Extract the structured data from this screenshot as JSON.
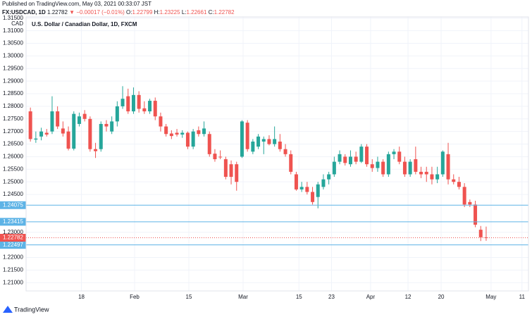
{
  "header": {
    "published": "Published on TradingView.com, May 03, 2021 00:33:07 JST",
    "symbol": "FX:USDCAD, 1D",
    "last": "1.22782",
    "change": "▼ −0.00017 (−0.01%)",
    "o_label": "O:",
    "o": "1.22799",
    "h_label": "H:",
    "h": "1.23225",
    "l_label": "L:",
    "l": "1.22661",
    "c_label": "C:",
    "c": "1.22782"
  },
  "footer": {
    "brand": "TradingView"
  },
  "chart_data": {
    "type": "candlestick",
    "title": "U.S. Dollar / Canadian Dollar, 1D, FXCM",
    "y_unit": "CAD",
    "up_color": "#26a69a",
    "down_color": "#ef5350",
    "grid": true,
    "x": [
      0,
      1,
      2,
      3,
      4,
      5,
      6,
      7,
      8,
      9,
      10,
      11,
      12,
      13,
      14,
      15,
      16,
      17,
      18,
      19,
      20,
      21,
      22,
      23,
      24,
      25,
      26,
      27,
      28,
      29,
      30,
      31,
      32,
      33,
      34,
      35,
      36,
      37,
      38,
      39,
      40,
      41,
      42,
      43,
      44,
      45,
      46,
      47,
      48,
      49,
      50,
      51,
      52,
      53,
      54,
      55,
      56,
      57,
      58,
      59,
      60,
      61,
      62,
      63,
      64,
      65,
      66,
      67,
      68,
      69,
      70,
      71,
      72,
      73,
      74,
      75,
      76,
      77,
      78,
      79,
      80,
      81,
      82,
      83,
      84
    ],
    "open": [
      1.278,
      1.2668,
      1.268,
      1.2695,
      1.27,
      1.278,
      1.2712,
      1.27,
      1.2632,
      1.273,
      1.277,
      1.275,
      1.263,
      1.263,
      1.273,
      1.27,
      1.274,
      1.28,
      1.284,
      1.278,
      1.2845,
      1.2792,
      1.278,
      1.2822,
      1.276,
      1.272,
      1.2692,
      1.2695,
      1.2688,
      1.2695,
      1.264,
      1.2705,
      1.269,
      1.269,
      1.2612,
      1.26,
      1.259,
      1.257,
      1.257,
      1.26,
      1.2735,
      1.262,
      1.264,
      1.266,
      1.267,
      1.265,
      1.266,
      1.263,
      1.261,
      1.253,
      1.247,
      1.248,
      1.246,
      1.244,
      1.248,
      1.251,
      1.253,
      1.258,
      1.26,
      1.257,
      1.26,
      1.258,
      1.264,
      1.257,
      1.2555,
      1.258,
      1.253,
      1.261,
      1.262,
      1.258,
      1.253,
      1.259,
      1.254,
      1.254,
      1.253,
      1.251,
      1.253,
      1.261,
      1.251,
      1.25,
      1.248,
      1.242,
      1.241,
      1.231,
      1.22799
    ],
    "high": [
      1.2795,
      1.27,
      1.2715,
      1.271,
      1.284,
      1.28,
      1.274,
      1.272,
      1.278,
      1.2775,
      1.2785,
      1.276,
      1.2655,
      1.274,
      1.2745,
      1.276,
      1.282,
      1.288,
      1.287,
      1.2875,
      1.286,
      1.282,
      1.283,
      1.2835,
      1.2775,
      1.273,
      1.2705,
      1.271,
      1.2705,
      1.27,
      1.271,
      1.272,
      1.274,
      1.27,
      1.263,
      1.2625,
      1.26,
      1.2585,
      1.258,
      1.2745,
      1.2745,
      1.267,
      1.269,
      1.268,
      1.2685,
      1.272,
      1.269,
      1.265,
      1.2625,
      1.254,
      1.25,
      1.25,
      1.248,
      1.25,
      1.253,
      1.254,
      1.26,
      1.2625,
      1.261,
      1.2625,
      1.262,
      1.265,
      1.265,
      1.259,
      1.26,
      1.259,
      1.262,
      1.263,
      1.264,
      1.26,
      1.259,
      1.264,
      1.256,
      1.256,
      1.256,
      1.256,
      1.2625,
      1.2655,
      1.253,
      1.252,
      1.2495,
      1.243,
      1.2425,
      1.2325,
      1.23225
    ],
    "low": [
      1.266,
      1.2655,
      1.2665,
      1.268,
      1.269,
      1.271,
      1.268,
      1.2625,
      1.2625,
      1.272,
      1.274,
      1.262,
      1.2595,
      1.262,
      1.27,
      1.269,
      1.272,
      1.279,
      1.277,
      1.277,
      1.2775,
      1.277,
      1.277,
      1.2745,
      1.27,
      1.268,
      1.267,
      1.268,
      1.2675,
      1.263,
      1.263,
      1.268,
      1.268,
      1.26,
      1.258,
      1.259,
      1.251,
      1.249,
      1.2465,
      1.2595,
      1.262,
      1.261,
      1.263,
      1.261,
      1.2645,
      1.264,
      1.262,
      1.26,
      1.253,
      1.2465,
      1.246,
      1.245,
      1.241,
      1.2395,
      1.247,
      1.249,
      1.252,
      1.257,
      1.2565,
      1.256,
      1.257,
      1.2575,
      1.256,
      1.254,
      1.254,
      1.252,
      1.252,
      1.259,
      1.257,
      1.252,
      1.252,
      1.253,
      1.2515,
      1.25,
      1.249,
      1.2495,
      1.252,
      1.249,
      1.249,
      1.247,
      1.24,
      1.24,
      1.232,
      1.2265,
      1.22661
    ],
    "close": [
      1.267,
      1.2672,
      1.27,
      1.2688,
      1.278,
      1.272,
      1.2692,
      1.2632,
      1.277,
      1.276,
      1.275,
      1.263,
      1.2622,
      1.273,
      1.272,
      1.274,
      1.28,
      1.283,
      1.278,
      1.2845,
      1.279,
      1.278,
      1.2822,
      1.276,
      1.272,
      1.269,
      1.2682,
      1.2688,
      1.2695,
      1.264,
      1.27,
      1.269,
      1.2712,
      1.261,
      1.259,
      1.2598,
      1.252,
      1.252,
      1.25,
      1.274,
      1.263,
      1.266,
      1.268,
      1.267,
      1.265,
      1.267,
      1.263,
      1.261,
      1.254,
      1.247,
      1.248,
      1.246,
      1.242,
      1.249,
      1.251,
      1.253,
      1.258,
      1.261,
      1.2575,
      1.26,
      1.258,
      1.264,
      1.257,
      1.2555,
      1.258,
      1.253,
      1.261,
      1.262,
      1.258,
      1.253,
      1.258,
      1.254,
      1.253,
      1.253,
      1.251,
      1.253,
      1.262,
      1.251,
      1.25,
      1.248,
      1.241,
      1.241,
      1.233,
      1.228,
      1.22782
    ],
    "xlim": [
      -0.8,
      91.8
    ],
    "xticks": [
      {
        "value": 9.4,
        "label": "18"
      },
      {
        "value": 19.2,
        "label": "Feb"
      },
      {
        "value": 29.2,
        "label": "15"
      },
      {
        "value": 39.2,
        "label": "Mar"
      },
      {
        "value": 49.5,
        "label": "15"
      },
      {
        "value": 55.5,
        "label": "23"
      },
      {
        "value": 62.7,
        "label": "Apr"
      },
      {
        "value": 69.6,
        "label": "12"
      },
      {
        "value": 75.7,
        "label": "20"
      },
      {
        "value": 84.9,
        "label": "May"
      },
      {
        "value": 90.6,
        "label": "11"
      }
    ],
    "ylim": [
      1.2067,
      1.3155
    ],
    "yticks": [
      {
        "value": 1.315,
        "label": "1.31500"
      },
      {
        "value": 1.31,
        "label": "1.31000"
      },
      {
        "value": 1.305,
        "label": "1.30500"
      },
      {
        "value": 1.3,
        "label": "1.30000"
      },
      {
        "value": 1.295,
        "label": "1.29500"
      },
      {
        "value": 1.29,
        "label": "1.29000"
      },
      {
        "value": 1.285,
        "label": "1.28500"
      },
      {
        "value": 1.28,
        "label": "1.28000"
      },
      {
        "value": 1.275,
        "label": "1.27500"
      },
      {
        "value": 1.27,
        "label": "1.27000"
      },
      {
        "value": 1.265,
        "label": "1.26500"
      },
      {
        "value": 1.26,
        "label": "1.26000"
      },
      {
        "value": 1.255,
        "label": "1.25500"
      },
      {
        "value": 1.25,
        "label": "1.25000"
      },
      {
        "value": 1.245,
        "label": "1.24500"
      },
      {
        "value": 1.23,
        "label": "1.23000"
      },
      {
        "value": 1.22,
        "label": "1.22000"
      },
      {
        "value": 1.215,
        "label": "1.21500"
      },
      {
        "value": 1.21,
        "label": "1.21000"
      }
    ],
    "levels": [
      {
        "value": 1.24075,
        "label": "1.24075"
      },
      {
        "value": 1.23415,
        "label": "1.23415"
      },
      {
        "value": 1.22497,
        "label": "1.22497"
      }
    ],
    "level_color": "#5db3e6",
    "last_price": {
      "value": 1.22782,
      "label": "1.22782"
    }
  }
}
